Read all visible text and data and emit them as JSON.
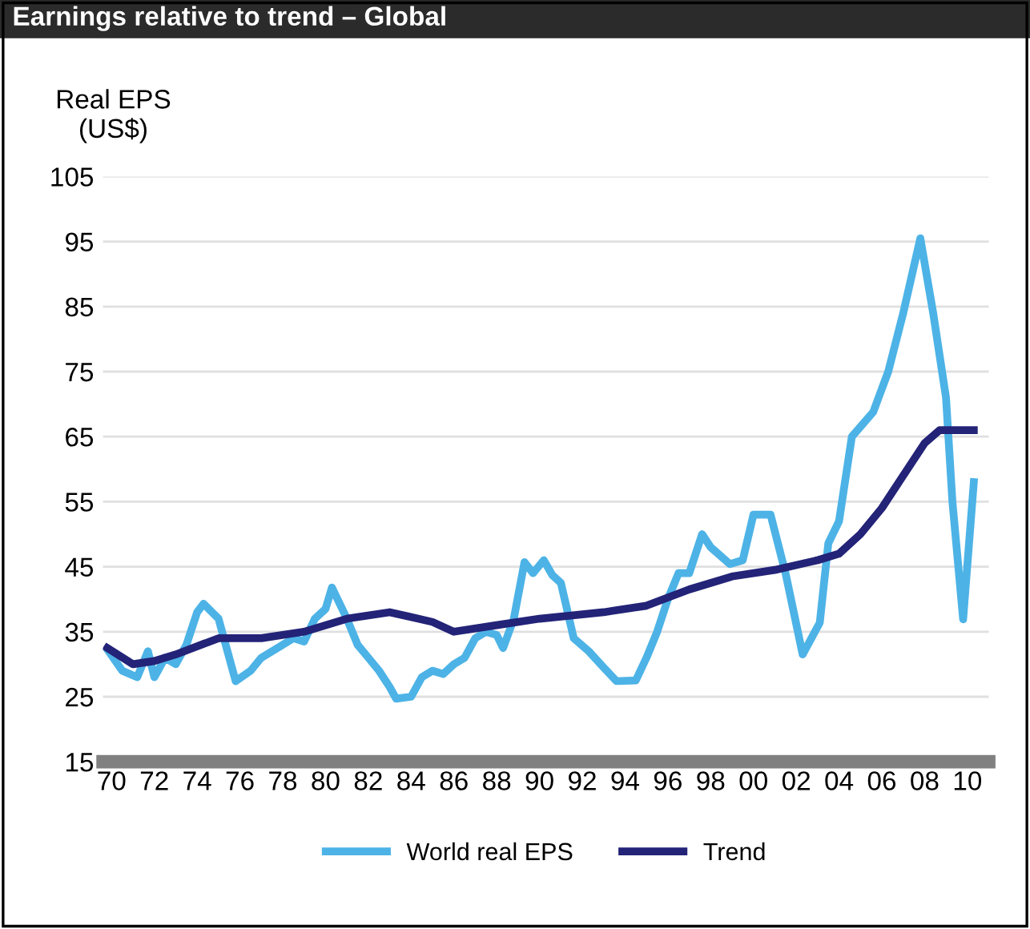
{
  "chart_data": {
    "type": "line",
    "title": "Earnings relative to trend – Global",
    "ylabel": "Real EPS\n(US$)",
    "xlim": [
      1969.6,
      2011
    ],
    "xticks": [
      {
        "value": 1970,
        "label": "70"
      },
      {
        "value": 1972,
        "label": "72"
      },
      {
        "value": 1974,
        "label": "74"
      },
      {
        "value": 1976,
        "label": "76"
      },
      {
        "value": 1978,
        "label": "78"
      },
      {
        "value": 1980,
        "label": "80"
      },
      {
        "value": 1982,
        "label": "82"
      },
      {
        "value": 1984,
        "label": "84"
      },
      {
        "value": 1986,
        "label": "86"
      },
      {
        "value": 1988,
        "label": "88"
      },
      {
        "value": 1990,
        "label": "90"
      },
      {
        "value": 1992,
        "label": "92"
      },
      {
        "value": 1994,
        "label": "94"
      },
      {
        "value": 1996,
        "label": "96"
      },
      {
        "value": 1998,
        "label": "98"
      },
      {
        "value": 2000,
        "label": "00"
      },
      {
        "value": 2002,
        "label": "02"
      },
      {
        "value": 2004,
        "label": "04"
      },
      {
        "value": 2006,
        "label": "06"
      },
      {
        "value": 2008,
        "label": "08"
      },
      {
        "value": 2010,
        "label": "10"
      }
    ],
    "ylim": [
      15,
      105
    ],
    "yticks": [
      15,
      25,
      35,
      45,
      55,
      65,
      75,
      85,
      95,
      105
    ],
    "grid": "y",
    "legend": "bottom",
    "series": [
      {
        "name": "World real EPS",
        "color": "#4db3e6",
        "x": [
          1969.8,
          1970.5,
          1971.2,
          1971.7,
          1972,
          1972.5,
          1973,
          1973.5,
          1974,
          1974.3,
          1975,
          1975.8,
          1976.5,
          1977,
          1978,
          1978.5,
          1979,
          1979.5,
          1980,
          1980.3,
          1981,
          1981.5,
          1982,
          1982.5,
          1983,
          1983.3,
          1984,
          1984.5,
          1985,
          1985.5,
          1986,
          1986.5,
          1987,
          1987.5,
          1988,
          1988.3,
          1988.8,
          1989.3,
          1989.7,
          1990.2,
          1990.6,
          1991,
          1991.6,
          1992.3,
          1993,
          1993.6,
          1994.5,
          1995,
          1995.5,
          1996,
          1996.5,
          1997,
          1997.6,
          1998,
          1998.9,
          1999.5,
          2000,
          2000.8,
          2001.5,
          2002.3,
          2003.1,
          2003.5,
          2004,
          2004.6,
          2005.6,
          2006.3,
          2007,
          2007.8,
          2008.4,
          2009,
          2009.3,
          2009.8,
          2010.3
        ],
        "values": [
          32.3,
          29,
          28,
          32,
          28,
          31,
          30,
          33,
          38,
          39.3,
          37,
          27.4,
          29,
          31,
          33,
          34,
          33.5,
          37,
          38.5,
          41.8,
          37,
          33,
          31,
          29,
          26.5,
          24.7,
          25,
          28,
          29,
          28.5,
          30,
          31,
          34,
          35,
          34.5,
          32.5,
          37,
          45.7,
          44,
          46,
          43.7,
          42.5,
          34,
          32,
          29.5,
          27.4,
          27.5,
          31,
          35,
          40,
          44,
          44,
          50,
          48,
          45.4,
          46,
          53,
          53,
          44,
          31.5,
          36.4,
          48.6,
          52,
          65,
          68.8,
          75,
          84,
          95.5,
          84,
          71,
          55,
          36.9,
          58
        ]
      },
      {
        "name": "Trend",
        "color": "#232378",
        "x": [
          1969.8,
          1971,
          1972,
          1973,
          1975,
          1977,
          1979,
          1981,
          1983,
          1985,
          1986,
          1988,
          1990,
          1993,
          1995,
          1997,
          1999,
          2001,
          2003,
          2004,
          2005,
          2006,
          2007,
          2008,
          2008.7,
          2010.3
        ],
        "values": [
          32.5,
          30,
          30.5,
          31.5,
          34,
          34,
          35,
          37,
          38,
          36.5,
          35,
          36,
          37,
          38,
          39,
          41.5,
          43.5,
          44.5,
          46,
          47,
          50,
          54,
          59,
          64,
          66,
          66
        ]
      }
    ]
  }
}
